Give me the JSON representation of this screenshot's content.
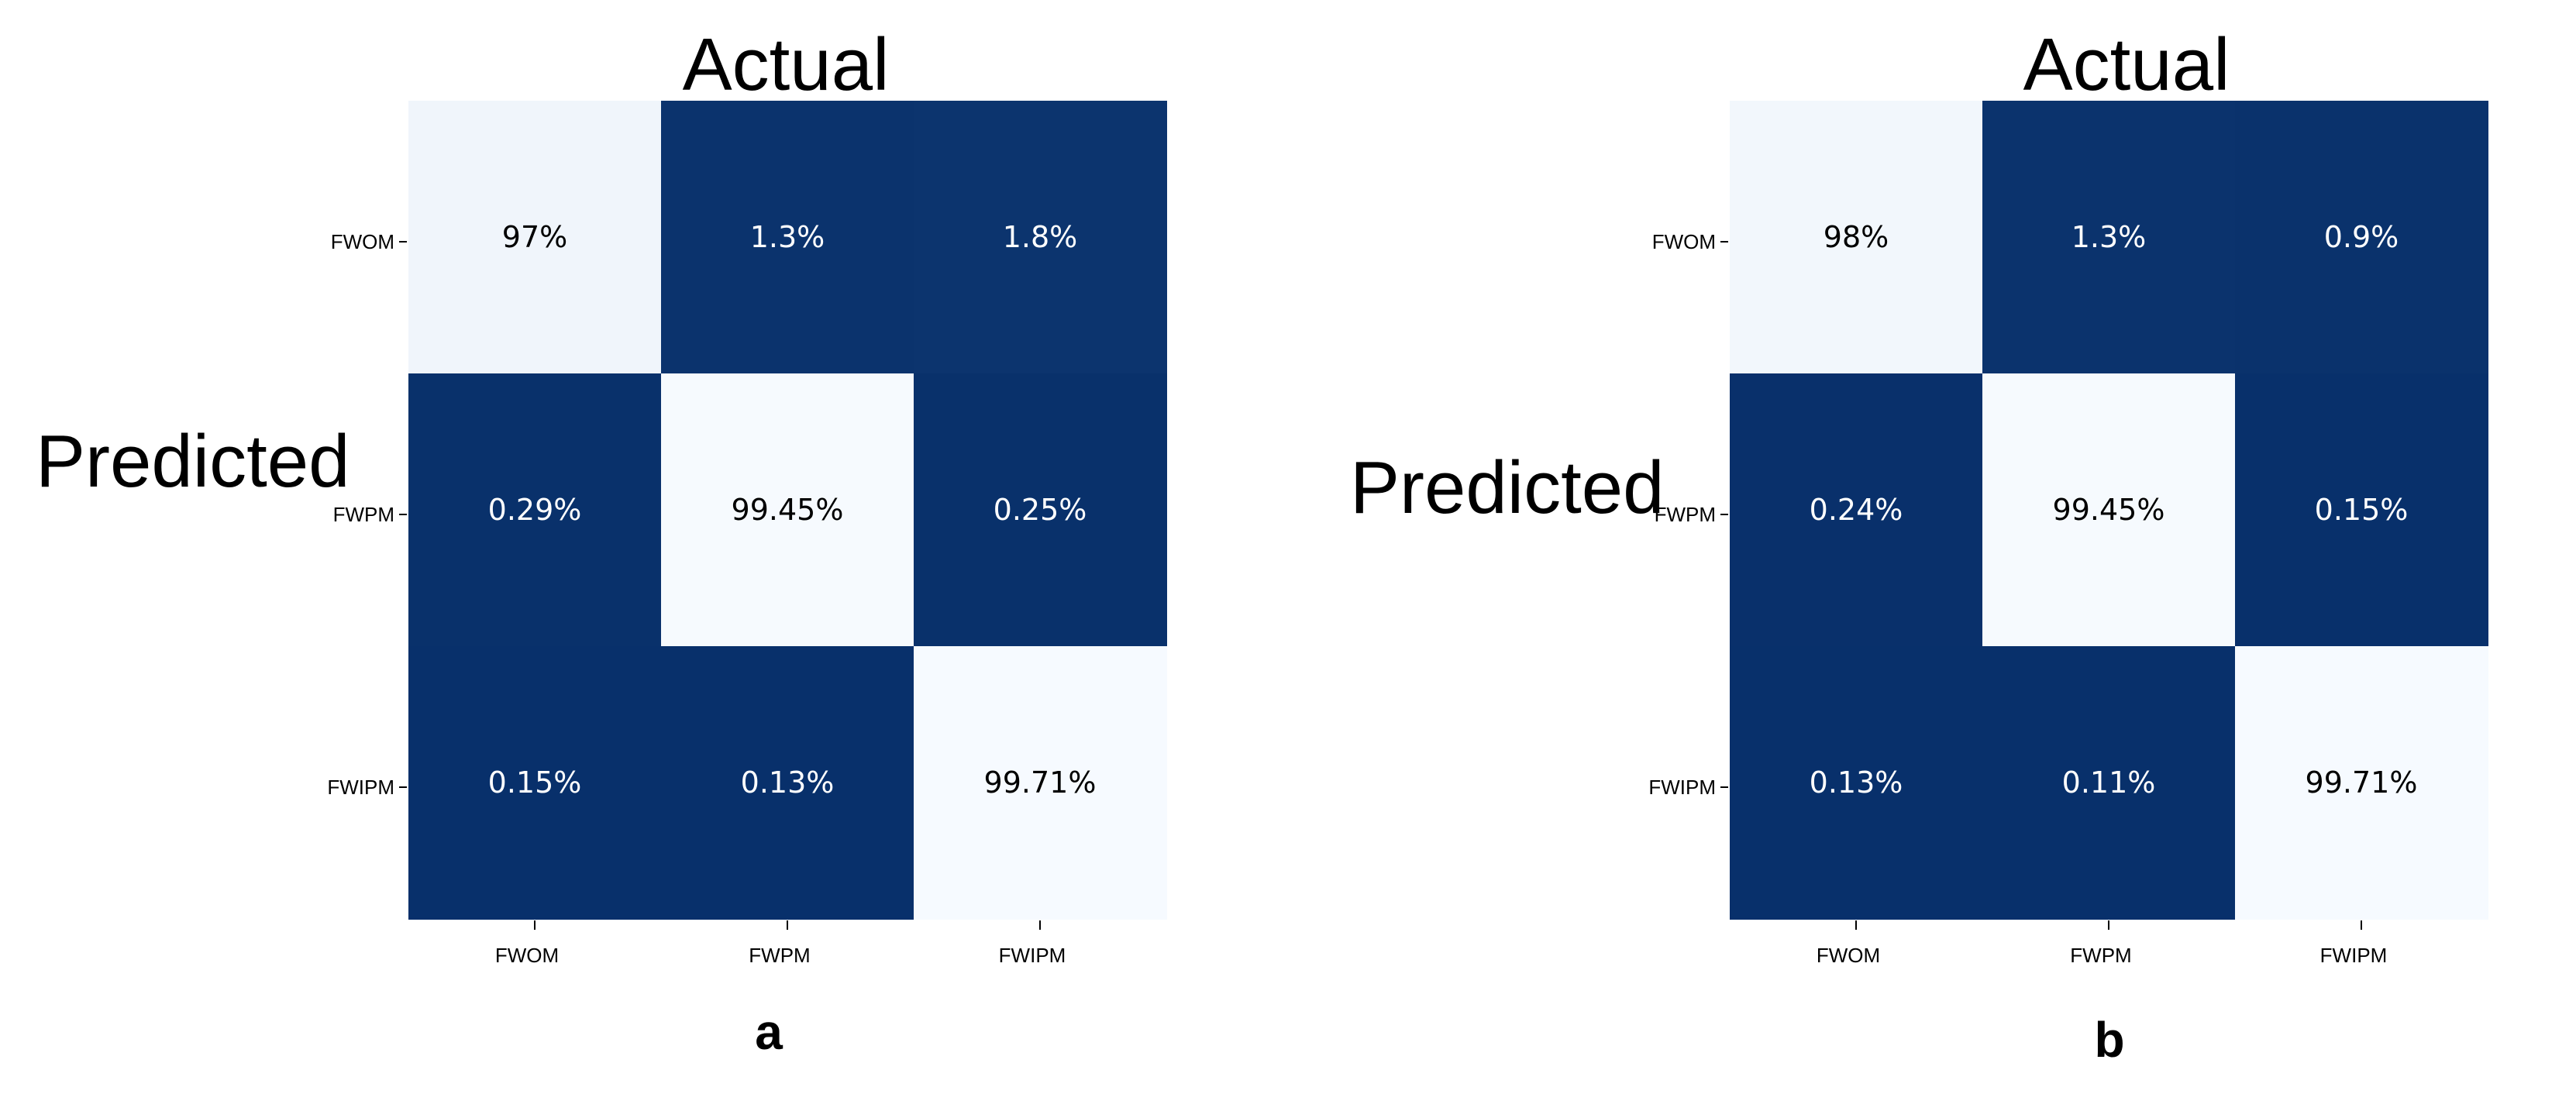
{
  "chart_data": [
    {
      "type": "heatmap",
      "panel_label": "a",
      "title": "Actual",
      "ylabel": "Predicted",
      "x_categories": [
        "FWOM",
        "FWPM",
        "FWIPM"
      ],
      "y_categories": [
        "FWOM",
        "FWPM",
        "FWIPM"
      ],
      "cell_labels": [
        [
          "97%",
          "1.3%",
          "1.8%"
        ],
        [
          "0.29%",
          "99.45%",
          "0.25%"
        ],
        [
          "0.15%",
          "0.13%",
          "99.71%"
        ]
      ],
      "values": [
        [
          97,
          1.3,
          1.8
        ],
        [
          0.29,
          99.45,
          0.25
        ],
        [
          0.15,
          0.13,
          99.71
        ]
      ],
      "colorscale": {
        "low": "#08306b",
        "high": "#f7fbff",
        "low_text": "#ffffff",
        "high_text": "#000000"
      }
    },
    {
      "type": "heatmap",
      "panel_label": "b",
      "title": "Actual",
      "ylabel": "Predicted",
      "x_categories": [
        "FWOM",
        "FWPM",
        "FWIPM"
      ],
      "y_categories": [
        "FWOM",
        "FWPM",
        "FWIPM"
      ],
      "cell_labels": [
        [
          "98%",
          "1.3%",
          "0.9%"
        ],
        [
          "0.24%",
          "99.45%",
          "0.15%"
        ],
        [
          "0.13%",
          "0.11%",
          "99.71%"
        ]
      ],
      "values": [
        [
          98,
          1.3,
          0.9
        ],
        [
          0.24,
          99.45,
          0.15
        ],
        [
          0.13,
          0.11,
          99.71
        ]
      ],
      "colorscale": {
        "low": "#08306b",
        "high": "#f7fbff",
        "low_text": "#ffffff",
        "high_text": "#000000"
      }
    }
  ]
}
